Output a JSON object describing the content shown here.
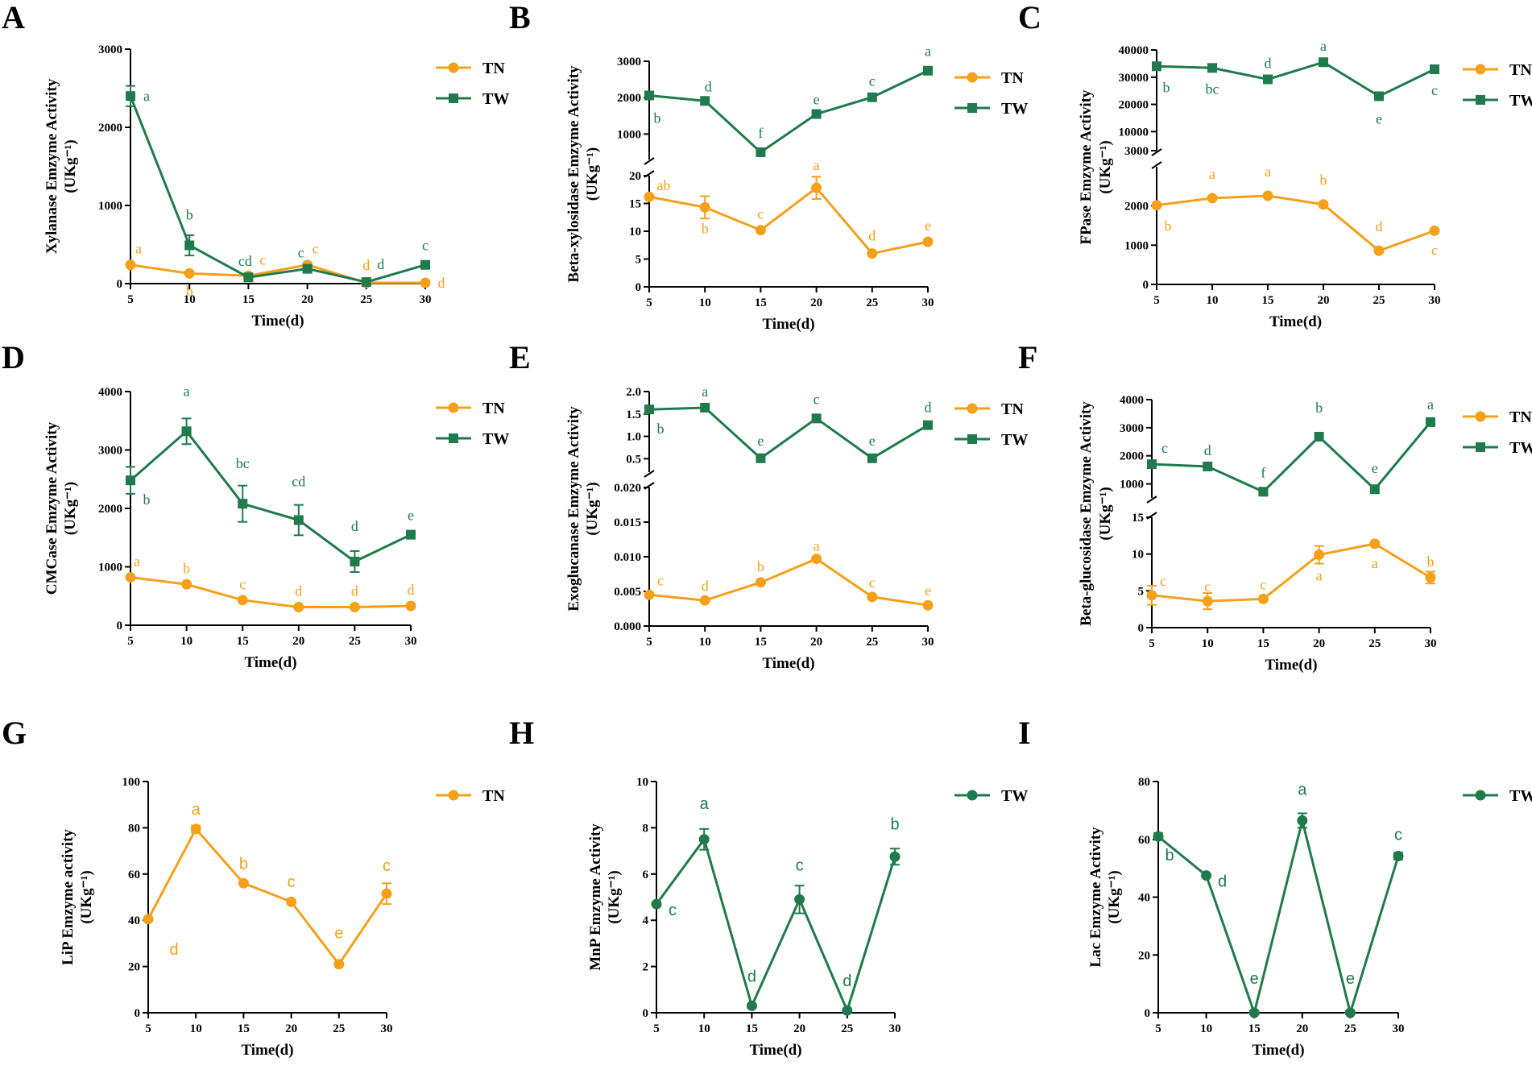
{
  "colors": {
    "TN": "#F5A01A",
    "TW": "#1F7A4C",
    "axis": "#000000"
  },
  "chart_data": [
    {
      "panel": "A",
      "type": "line",
      "ylabel": "Xylanase Emzyme Activity",
      "yunit": "(UKg⁻¹)",
      "xlabel": "Time(d)",
      "x": [
        5,
        10,
        15,
        20,
        25,
        30
      ],
      "segments": [
        {
          "range": [
            0,
            3000
          ],
          "ticks": [
            0,
            1000,
            2000,
            3000
          ]
        }
      ],
      "series": [
        {
          "name": "TN",
          "marker": "circle",
          "values": [
            240,
            130,
            100,
            240,
            10,
            10
          ],
          "errors": [
            0,
            0,
            0,
            0,
            0,
            0
          ],
          "sig": [
            "a",
            "b",
            "c",
            "c",
            "d",
            "d"
          ],
          "sigdy": [
            -20,
            22,
            -20,
            -20,
            -22,
            0
          ],
          "sigdx": [
            10,
            0,
            18,
            10,
            0,
            20
          ]
        },
        {
          "name": "TW",
          "marker": "square",
          "values": [
            2400,
            490,
            80,
            190,
            20,
            240
          ],
          "errors": [
            130,
            130,
            0,
            0,
            0,
            0
          ],
          "sig": [
            "a",
            "b",
            "cd",
            "c",
            "d",
            "c"
          ],
          "sigdy": [
            0,
            -38,
            -20,
            -20,
            -22,
            -24
          ],
          "sigdx": [
            20,
            0,
            -4,
            -8,
            18,
            0
          ]
        }
      ],
      "legend": [
        "TN",
        "TW"
      ]
    },
    {
      "panel": "B",
      "type": "line",
      "ylabel": "Beta-xylosidase Emzyme Activity",
      "yunit": "(UKg⁻¹)",
      "xlabel": "Time(d)",
      "x": [
        5,
        10,
        15,
        20,
        25,
        30
      ],
      "segments": [
        {
          "range": [
            0,
            20
          ],
          "ticks": [
            0,
            5,
            10,
            15,
            20
          ]
        },
        {
          "range": [
            300,
            3000
          ],
          "ticks": [
            1000,
            2000,
            3000
          ]
        }
      ],
      "series": [
        {
          "name": "TN",
          "marker": "circle",
          "values": [
            16.2,
            14.3,
            10.2,
            17.8,
            6.0,
            8.1
          ],
          "errors": [
            0,
            2.0,
            0,
            2.0,
            0,
            0
          ],
          "sig": [
            "ab",
            "b",
            "c",
            "a",
            "d",
            "e"
          ],
          "sigdy": [
            -14,
            26,
            -20,
            -28,
            -22,
            -20
          ],
          "sigdx": [
            18,
            0,
            0,
            0,
            0,
            0
          ]
        },
        {
          "name": "TW",
          "marker": "square",
          "values": [
            2060,
            1910,
            500,
            1550,
            2010,
            2740
          ],
          "errors": [
            0,
            0,
            0,
            0,
            0,
            0
          ],
          "sig": [
            "b",
            "d",
            "f",
            "e",
            "c",
            "a"
          ],
          "sigdy": [
            28,
            -18,
            -24,
            -18,
            -20,
            -24
          ],
          "sigdx": [
            10,
            4,
            0,
            0,
            0,
            0
          ]
        }
      ],
      "legend": [
        "TN",
        "TW"
      ]
    },
    {
      "panel": "C",
      "type": "line",
      "ylabel": "FPase Emzyme Activity",
      "yunit": "(UKg⁻¹)",
      "xlabel": "Time(d)",
      "x": [
        5,
        10,
        15,
        20,
        25,
        30
      ],
      "segments": [
        {
          "range": [
            0,
            3000
          ],
          "ticks": [
            0,
            1000,
            2000,
            3000
          ]
        },
        {
          "range": [
            3000,
            40000
          ],
          "ticks": [
            10000,
            20000,
            30000,
            40000
          ]
        }
      ],
      "series": [
        {
          "name": "TN",
          "marker": "circle",
          "values": [
            2020,
            2200,
            2260,
            2040,
            860,
            1370
          ],
          "errors": [
            0,
            0,
            0,
            0,
            0,
            0
          ],
          "sig": [
            "b",
            "a",
            "a",
            "b",
            "d",
            "c"
          ],
          "sigdy": [
            26,
            -30,
            -30,
            -30,
            -30,
            24
          ],
          "sigdx": [
            14,
            0,
            0,
            0,
            0,
            0
          ]
        },
        {
          "name": "TW",
          "marker": "square",
          "values": [
            34000,
            33400,
            29200,
            35500,
            23000,
            32900
          ],
          "errors": [
            0,
            0,
            0,
            0,
            0,
            0
          ],
          "sig": [
            "b",
            "bc",
            "d",
            "a",
            "e",
            "c"
          ],
          "sigdy": [
            26,
            26,
            -20,
            -20,
            28,
            26
          ],
          "sigdx": [
            12,
            0,
            0,
            0,
            0,
            0
          ]
        }
      ],
      "legend": [
        "TN",
        "TW"
      ]
    },
    {
      "panel": "D",
      "type": "line",
      "ylabel": "CMCase Emzyme Activity",
      "yunit": "(UKg⁻¹)",
      "xlabel": "Time(d)",
      "x": [
        5,
        10,
        15,
        20,
        25,
        30
      ],
      "segments": [
        {
          "range": [
            0,
            4000
          ],
          "ticks": [
            0,
            1000,
            2000,
            3000,
            4000
          ]
        }
      ],
      "series": [
        {
          "name": "TN",
          "marker": "circle",
          "values": [
            820,
            700,
            430,
            310,
            310,
            330
          ],
          "errors": [
            0,
            0,
            0,
            0,
            0,
            0
          ],
          "sig": [
            "a",
            "b",
            "c",
            "d",
            "d",
            "d"
          ],
          "sigdy": [
            -20,
            -20,
            -20,
            -20,
            -20,
            -20
          ],
          "sigdx": [
            8,
            0,
            0,
            0,
            0,
            0
          ]
        },
        {
          "name": "TW",
          "marker": "square",
          "values": [
            2480,
            3320,
            2080,
            1800,
            1090,
            1550
          ],
          "errors": [
            230,
            220,
            310,
            260,
            180,
            0
          ],
          "sig": [
            "b",
            "a",
            "bc",
            "cd",
            "d",
            "e"
          ],
          "sigdy": [
            24,
            -50,
            -50,
            -48,
            -44,
            -24
          ],
          "sigdx": [
            20,
            0,
            0,
            0,
            0,
            0
          ]
        }
      ],
      "legend": [
        "TN",
        "TW"
      ]
    },
    {
      "panel": "E",
      "type": "line",
      "ylabel": "Exoglucanase Emzyme Activity",
      "yunit": "(UKg⁻¹)",
      "xlabel": "Time(d)",
      "x": [
        5,
        10,
        15,
        20,
        25,
        30
      ],
      "segments": [
        {
          "range": [
            0,
            0.02
          ],
          "ticks": [
            0.0,
            0.005,
            0.01,
            0.015,
            0.02
          ],
          "decimals": 3
        },
        {
          "range": [
            0.2,
            2.0
          ],
          "ticks": [
            0.5,
            1.0,
            1.5,
            2.0
          ],
          "decimals": 1
        }
      ],
      "series": [
        {
          "name": "TN",
          "marker": "circle",
          "values": [
            0.0045,
            0.0037,
            0.0063,
            0.0097,
            0.0042,
            0.003
          ],
          "errors": [
            0,
            0,
            0,
            0,
            0,
            0
          ],
          "sig": [
            "c",
            "d",
            "b",
            "a",
            "c",
            "e"
          ],
          "sigdy": [
            -18,
            -18,
            -20,
            -16,
            -18,
            -18
          ],
          "sigdx": [
            14,
            0,
            0,
            0,
            0,
            0
          ]
        },
        {
          "name": "TW",
          "marker": "square",
          "values": [
            1.6,
            1.64,
            0.51,
            1.4,
            0.51,
            1.25
          ],
          "errors": [
            0,
            0,
            0,
            0,
            0,
            0
          ],
          "sig": [
            "b",
            "a",
            "e",
            "c",
            "e",
            "d"
          ],
          "sigdy": [
            24,
            -20,
            -22,
            -24,
            -22,
            -22
          ],
          "sigdx": [
            14,
            0,
            0,
            0,
            0,
            0
          ]
        }
      ],
      "legend": [
        "TN",
        "TW"
      ]
    },
    {
      "panel": "F",
      "type": "line",
      "ylabel": "Beta-glucosidase Emzyme Activity",
      "yunit": "(UKg⁻¹)",
      "xlabel": "Time(d)",
      "x": [
        5,
        10,
        15,
        20,
        25,
        30
      ],
      "segments": [
        {
          "range": [
            0,
            15
          ],
          "ticks": [
            0,
            5,
            10,
            15
          ]
        },
        {
          "range": [
            500,
            4000
          ],
          "ticks": [
            1000,
            2000,
            3000,
            4000
          ]
        }
      ],
      "series": [
        {
          "name": "TN",
          "marker": "circle",
          "values": [
            4.4,
            3.6,
            3.9,
            9.9,
            11.4,
            6.8
          ],
          "errors": [
            1.3,
            1.1,
            0,
            1.2,
            0,
            0.8
          ],
          "sig": [
            "c",
            "c",
            "c",
            "a",
            "a",
            "b"
          ],
          "sigdy": [
            -18,
            -18,
            -18,
            26,
            24,
            -20
          ],
          "sigdx": [
            14,
            0,
            0,
            0,
            0,
            0
          ]
        },
        {
          "name": "TW",
          "marker": "square",
          "values": [
            1700,
            1620,
            720,
            2680,
            810,
            3200
          ],
          "errors": [
            0,
            0,
            0,
            0,
            0,
            0
          ],
          "sig": [
            "c",
            "d",
            "f",
            "b",
            "e",
            "a"
          ],
          "sigdy": [
            -20,
            -20,
            -24,
            -36,
            -26,
            -22
          ],
          "sigdx": [
            16,
            0,
            0,
            0,
            0,
            0
          ]
        }
      ],
      "legend": [
        "TN",
        "TW"
      ]
    },
    {
      "panel": "G",
      "type": "line",
      "ylabel": "LiP Emzyme activity",
      "yunit": "(UKg⁻¹)",
      "xlabel": "Time(d)",
      "x": [
        5,
        10,
        15,
        20,
        25,
        30
      ],
      "segments": [
        {
          "range": [
            0,
            100
          ],
          "ticks": [
            0,
            20,
            40,
            60,
            80,
            100
          ]
        }
      ],
      "series": [
        {
          "name": "TN",
          "marker": "circle",
          "values": [
            40.5,
            79.5,
            56,
            48,
            21,
            51.5
          ],
          "errors": [
            0,
            1.5,
            0,
            0,
            0,
            4.5
          ],
          "sig": [
            "d",
            "a",
            "b",
            "c",
            "e",
            "c"
          ],
          "sigdy": [
            38,
            -24,
            -24,
            -24,
            -38,
            -34
          ],
          "sigdx": [
            32,
            0,
            0,
            0,
            0,
            0
          ]
        }
      ],
      "legend": [
        "TN"
      ]
    },
    {
      "panel": "H",
      "type": "line",
      "ylabel": "MnP Emzyme Activity",
      "yunit": "(UKg⁻¹)",
      "xlabel": "Time(d)",
      "x": [
        5,
        10,
        15,
        20,
        25,
        30
      ],
      "segments": [
        {
          "range": [
            0,
            10
          ],
          "ticks": [
            0,
            2,
            4,
            6,
            8,
            10
          ]
        }
      ],
      "series": [
        {
          "name": "TW",
          "marker": "circle",
          "values": [
            4.7,
            7.5,
            0.3,
            4.9,
            0.1,
            6.75
          ],
          "errors": [
            0,
            0.45,
            0,
            0.6,
            0,
            0.35
          ],
          "sig": [
            "c",
            "a",
            "d",
            "c",
            "d",
            "b"
          ],
          "sigdy": [
            8,
            -44,
            -36,
            -42,
            -36,
            -40
          ],
          "sigdx": [
            20,
            0,
            0,
            0,
            0,
            0
          ]
        }
      ],
      "legend": [
        "TW"
      ]
    },
    {
      "panel": "I",
      "type": "line",
      "ylabel": "Lac Emzyme Activity",
      "yunit": "(UKg⁻¹)",
      "xlabel": "Time(d)",
      "x": [
        5,
        10,
        15,
        20,
        25,
        30
      ],
      "segments": [
        {
          "range": [
            0,
            80
          ],
          "ticks": [
            0,
            20,
            40,
            60,
            80
          ]
        }
      ],
      "series": [
        {
          "name": "TW",
          "marker": "circle",
          "values": [
            61,
            47.5,
            0,
            66.5,
            0,
            54.2
          ],
          "errors": [
            1.2,
            0,
            0,
            2.5,
            0,
            1.2
          ],
          "sig": [
            "b",
            "d",
            "e",
            "a",
            "e",
            "c"
          ],
          "sigdy": [
            24,
            8,
            -42,
            -38,
            -42,
            -26
          ],
          "sigdx": [
            14,
            20,
            0,
            0,
            0,
            0
          ]
        }
      ],
      "legend": [
        "TW"
      ]
    }
  ]
}
